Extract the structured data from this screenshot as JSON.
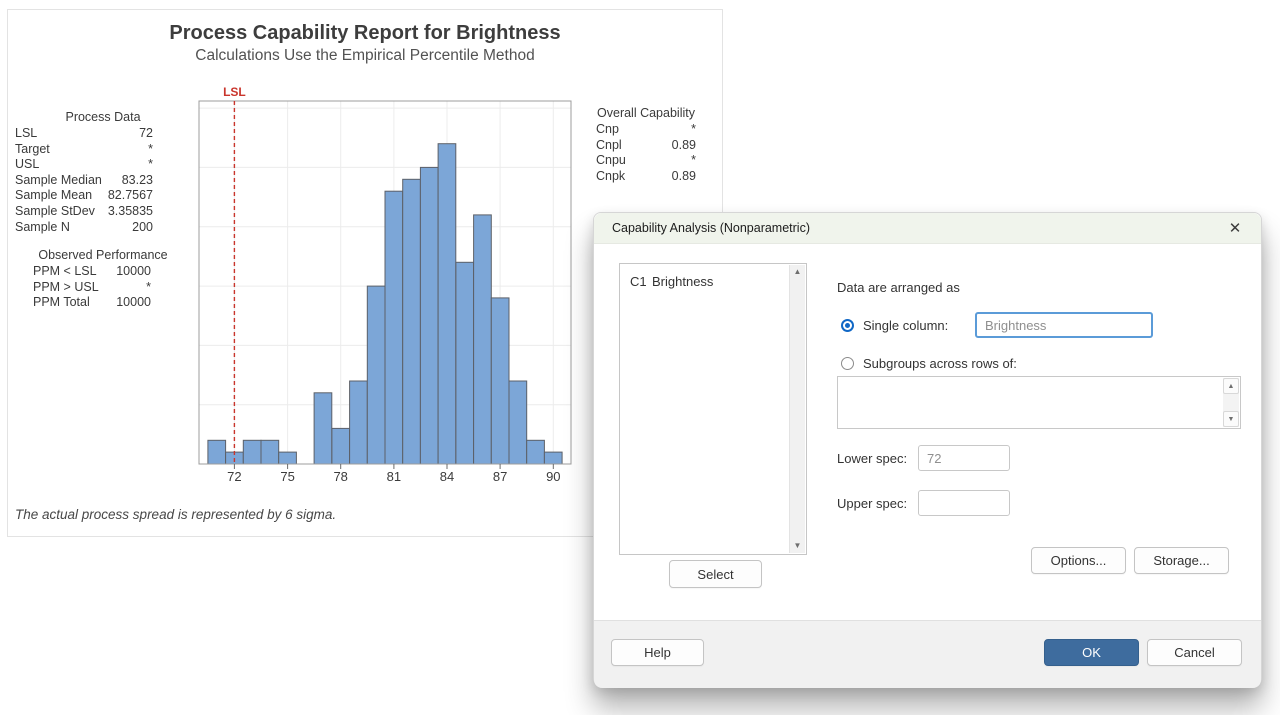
{
  "report_panel": {
    "process_data": {
      "title": "Process Data",
      "rows": [
        [
          "LSL",
          "72"
        ],
        [
          "Target",
          "*"
        ],
        [
          "USL",
          "*"
        ],
        [
          "Sample Median",
          "83.23"
        ],
        [
          "Sample Mean",
          "82.7567"
        ],
        [
          "Sample StDev",
          "3.35835"
        ],
        [
          "Sample N",
          "200"
        ]
      ]
    },
    "observed_performance": {
      "title": "Observed Performance",
      "rows": [
        [
          "PPM < LSL",
          "10000"
        ],
        [
          "PPM > USL",
          "*"
        ],
        [
          "PPM Total",
          "10000"
        ]
      ]
    },
    "overall_capability": {
      "title": "Overall Capability",
      "rows": [
        [
          "Cnp",
          "*"
        ],
        [
          "Cnpl",
          "0.89"
        ],
        [
          "Cnpu",
          "*"
        ],
        [
          "Cnpk",
          "0.89"
        ]
      ]
    }
  },
  "chart_data": {
    "type": "bar",
    "subtype": "histogram",
    "title": "Process Capability Report for Brightness",
    "subtitle": "Calculations Use the Empirical Percentile Method",
    "footnote": "The actual process spread is represented by 6 sigma.",
    "xlabel": "",
    "ylabel": "",
    "bin_width": 1,
    "bin_centers": [
      71,
      72,
      73,
      74,
      75,
      76,
      77,
      78,
      79,
      80,
      81,
      82,
      83,
      84,
      85,
      86,
      87,
      88,
      89,
      90
    ],
    "counts": [
      2,
      1,
      2,
      2,
      1,
      0,
      6,
      3,
      7,
      15,
      23,
      24,
      25,
      27,
      17,
      21,
      14,
      7,
      2,
      1
    ],
    "x_ticks": [
      72,
      75,
      78,
      81,
      84,
      87,
      90
    ],
    "xlim": [
      70,
      91
    ],
    "ylim": [
      0,
      30.6
    ],
    "y_gridlines": [
      5,
      10,
      15,
      20,
      25,
      30
    ],
    "grid": true,
    "legend": "none",
    "reference_lines": [
      {
        "label": "LSL",
        "value": 72,
        "color": "#C9352C"
      }
    ],
    "bar_fill": "#7CA6D7",
    "bar_stroke": "#5C6068"
  },
  "dialog": {
    "title": "Capability Analysis (Nonparametric)",
    "icons": {
      "close_icon": "✕",
      "scroll_up": "▲",
      "scroll_down": "▼"
    },
    "columns": [
      {
        "id": "C1",
        "name": "Brightness"
      }
    ],
    "labels": {
      "arranged": "Data are arranged as",
      "single_column": "Single column:",
      "subgroups": "Subgroups across rows of:",
      "lower_spec": "Lower spec:",
      "upper_spec": "Upper spec:"
    },
    "fields": {
      "single_column_value": "Brightness",
      "subgroups_value": "",
      "lower_spec_value": "72",
      "upper_spec_value": ""
    },
    "state": {
      "single_column_selected": true,
      "subgroups_selected": false
    },
    "buttons": {
      "select": "Select",
      "options": "Options...",
      "storage": "Storage...",
      "help": "Help",
      "ok": "OK",
      "cancel": "Cancel"
    },
    "colors": {
      "ok_button": "#3E6C9E",
      "radio_selected": "#1168C6",
      "input_focus_border": "#5B9BD8",
      "titlebar": "#F0F4EC",
      "lsl_line": "#C9352C"
    }
  }
}
